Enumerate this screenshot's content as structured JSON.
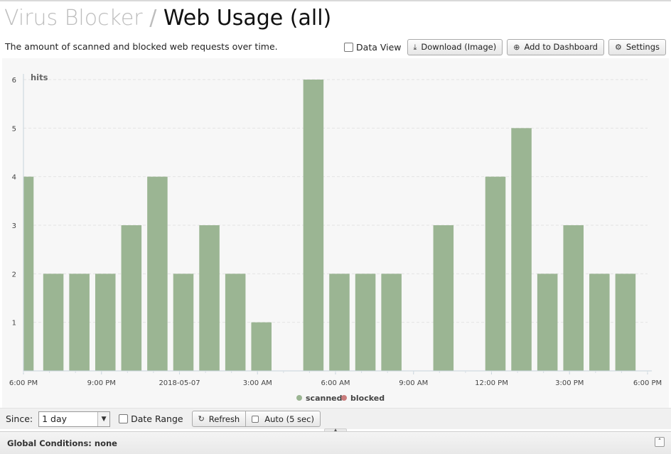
{
  "header": {
    "app_name": "Virus Blocker",
    "separator": "/",
    "report_name": "Web Usage (all)",
    "description": "The amount of scanned and blocked web requests over time."
  },
  "toolbar": {
    "data_view_label": "Data View",
    "download_label": "Download (Image)",
    "add_dashboard_label": "Add to Dashboard",
    "settings_label": "Settings",
    "icons": [
      "download-icon",
      "plus-circle-icon",
      "gear-icon"
    ]
  },
  "chart_data": {
    "type": "bar",
    "ylabel": "hits",
    "ylim": [
      0,
      6
    ],
    "yticks": [
      "1",
      "2",
      "3",
      "4",
      "5",
      "6"
    ],
    "xticks": [
      "6:00 PM",
      "9:00 PM",
      "2018-05-07",
      "3:00 AM",
      "6:00 AM",
      "9:00 AM",
      "12:00 PM",
      "3:00 PM",
      "6:00 PM"
    ],
    "x_unit": "hour",
    "x_start": "6:00 PM",
    "legend_position": "bottom-center",
    "grid": true,
    "series": [
      {
        "name": "scanned",
        "color": "#9bb593",
        "values": [
          4,
          2,
          2,
          2,
          3,
          4,
          2,
          3,
          2,
          1,
          0,
          6,
          2,
          2,
          2,
          0,
          3,
          0,
          4,
          5,
          2,
          3,
          2,
          2
        ]
      },
      {
        "name": "blocked",
        "color": "#c97c7c",
        "values": [
          0,
          0,
          0,
          0,
          0,
          0,
          0,
          0,
          0,
          0,
          0,
          0,
          0,
          0,
          0,
          0,
          0,
          0,
          0,
          0,
          0,
          0,
          0,
          0
        ]
      }
    ]
  },
  "bottom": {
    "since_label": "Since:",
    "since_value": "1 day",
    "date_range_label": "Date Range",
    "refresh_label": "Refresh",
    "auto_label": "Auto (5 sec)"
  },
  "global": {
    "conditions_label": "Global Conditions: none"
  }
}
